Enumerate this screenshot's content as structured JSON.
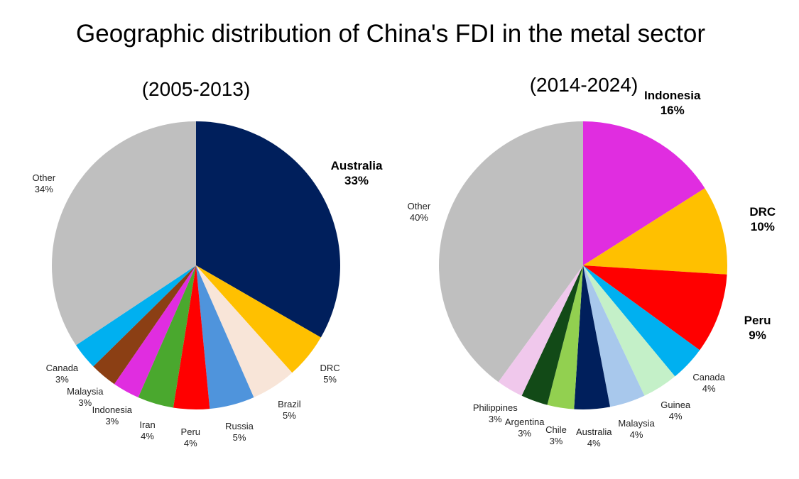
{
  "chart_data": [
    {
      "type": "pie",
      "title": "Geographic distribution of China's FDI in the metal sector",
      "subtitle": "(2005-2013)",
      "slices": [
        {
          "label": "Australia",
          "value": 33,
          "pct": "33%",
          "color": "#001f5c",
          "bold": true
        },
        {
          "label": "DRC",
          "value": 5,
          "pct": "5%",
          "color": "#ffc000"
        },
        {
          "label": "Brazil",
          "value": 5,
          "pct": "5%",
          "color": "#f8e5d8"
        },
        {
          "label": "Russia",
          "value": 5,
          "pct": "5%",
          "color": "#4f94dc"
        },
        {
          "label": "Peru",
          "value": 4,
          "pct": "4%",
          "color": "#ff0000"
        },
        {
          "label": "Iran",
          "value": 4,
          "pct": "4%",
          "color": "#4aa82e"
        },
        {
          "label": "Indonesia",
          "value": 3,
          "pct": "3%",
          "color": "#e02de0"
        },
        {
          "label": "Malaysia",
          "value": 3,
          "pct": "3%",
          "color": "#8b3f14"
        },
        {
          "label": "Canada",
          "value": 3,
          "pct": "3%",
          "color": "#00b0f0"
        },
        {
          "label": "Other",
          "value": 34,
          "pct": "34%",
          "color": "#bfbfbf"
        }
      ]
    },
    {
      "type": "pie",
      "subtitle": "(2014-2024)",
      "slices": [
        {
          "label": "Indonesia",
          "value": 16,
          "pct": "16%",
          "color": "#e02de0",
          "bold": true
        },
        {
          "label": "DRC",
          "value": 10,
          "pct": "10%",
          "color": "#ffc000",
          "bold": true
        },
        {
          "label": "Peru",
          "value": 9,
          "pct": "9%",
          "color": "#ff0000",
          "bold": true
        },
        {
          "label": "Canada",
          "value": 4,
          "pct": "4%",
          "color": "#00b0f0"
        },
        {
          "label": "Guinea",
          "value": 4,
          "pct": "4%",
          "color": "#c4f0c8"
        },
        {
          "label": "Malaysia",
          "value": 4,
          "pct": "4%",
          "color": "#a8c8ec"
        },
        {
          "label": "Australia",
          "value": 4,
          "pct": "4%",
          "color": "#001f5c"
        },
        {
          "label": "Chile",
          "value": 3,
          "pct": "3%",
          "color": "#92d050"
        },
        {
          "label": "Argentina",
          "value": 3,
          "pct": "3%",
          "color": "#124a17"
        },
        {
          "label": "Philippines",
          "value": 3,
          "pct": "3%",
          "color": "#f0c8ec"
        },
        {
          "label": "Other",
          "value": 40,
          "pct": "40%",
          "color": "#bfbfbf"
        }
      ]
    }
  ]
}
